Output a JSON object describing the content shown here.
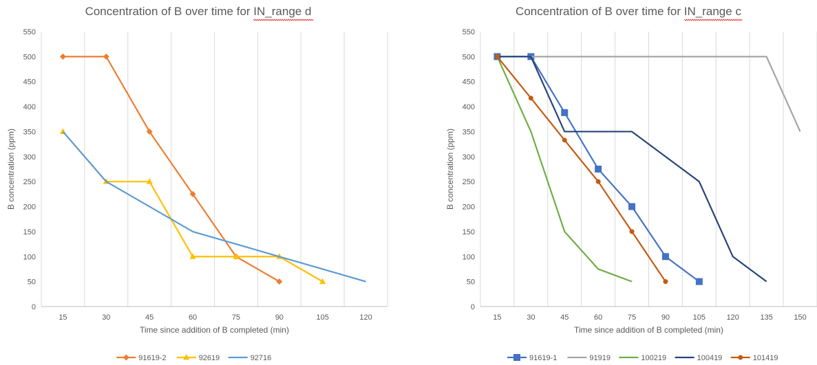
{
  "chart_data": [
    {
      "type": "line",
      "title_prefix": "Concentration of B over time for ",
      "title_suffix": "IN_range d",
      "xlabel": "Time since addition of B completed (min)",
      "ylabel": "B concentration (ppm)",
      "categories": [
        15,
        30,
        45,
        60,
        75,
        90,
        105,
        120
      ],
      "ylim": [
        0,
        550
      ],
      "yticks": [
        0,
        50,
        100,
        150,
        200,
        250,
        300,
        350,
        400,
        450,
        500,
        550
      ],
      "grid": "vertical",
      "legend": "bottom",
      "series": [
        {
          "name": "91619-2",
          "color": "#ED7D31",
          "marker": "diamond",
          "points": [
            [
              15,
              500
            ],
            [
              30,
              500
            ],
            [
              45,
              350
            ],
            [
              60,
              225
            ],
            [
              75,
              100
            ],
            [
              90,
              50
            ]
          ]
        },
        {
          "name": "92619",
          "color": "#FFC000",
          "marker": "triangle",
          "points": [
            [
              15,
              350
            ],
            [
              30,
              250
            ],
            [
              45,
              250
            ],
            [
              60,
              100
            ],
            [
              75,
              100
            ],
            [
              90,
              100
            ],
            [
              105,
              50
            ]
          ]
        },
        {
          "name": "92716",
          "color": "#5B9BD5",
          "marker": "none",
          "points": [
            [
              15,
              350
            ],
            [
              30,
              250
            ],
            [
              60,
              150
            ],
            [
              90,
              100
            ],
            [
              120,
              50
            ]
          ]
        }
      ]
    },
    {
      "type": "line",
      "title_prefix": "Concentration of B over time for ",
      "title_suffix": "IN_range c",
      "xlabel": "Time since addition of B completed (min)",
      "ylabel": "B concentration (ppm)",
      "categories": [
        15,
        30,
        45,
        60,
        75,
        90,
        105,
        120,
        135,
        150
      ],
      "ylim": [
        0,
        550
      ],
      "yticks": [
        0,
        50,
        100,
        150,
        200,
        250,
        300,
        350,
        400,
        450,
        500,
        550
      ],
      "grid": "vertical",
      "legend": "bottom",
      "series": [
        {
          "name": "91619-1",
          "color": "#4472C4",
          "marker": "square",
          "points": [
            [
              15,
              500
            ],
            [
              30,
              500
            ],
            [
              45,
              388
            ],
            [
              60,
              275
            ],
            [
              75,
              200
            ],
            [
              90,
              100
            ],
            [
              105,
              50
            ]
          ]
        },
        {
          "name": "91919",
          "color": "#A5A5A5",
          "marker": "none",
          "points": [
            [
              15,
              500
            ],
            [
              135,
              500
            ],
            [
              150,
              350
            ]
          ]
        },
        {
          "name": "100219",
          "color": "#70AD47",
          "marker": "none",
          "points": [
            [
              15,
              500
            ],
            [
              30,
              350
            ],
            [
              45,
              150
            ],
            [
              60,
              75
            ],
            [
              75,
              50
            ]
          ]
        },
        {
          "name": "100419",
          "color": "#264478",
          "marker": "none",
          "points": [
            [
              15,
              500
            ],
            [
              30,
              500
            ],
            [
              45,
              350
            ],
            [
              75,
              350
            ],
            [
              105,
              250
            ],
            [
              120,
              100
            ],
            [
              135,
              50
            ]
          ]
        },
        {
          "name": "101419",
          "color": "#C55A11",
          "marker": "circle",
          "points": [
            [
              15,
              500
            ],
            [
              30,
              417
            ],
            [
              45,
              333
            ],
            [
              60,
              250
            ],
            [
              75,
              150
            ],
            [
              90,
              50
            ]
          ]
        }
      ]
    }
  ]
}
